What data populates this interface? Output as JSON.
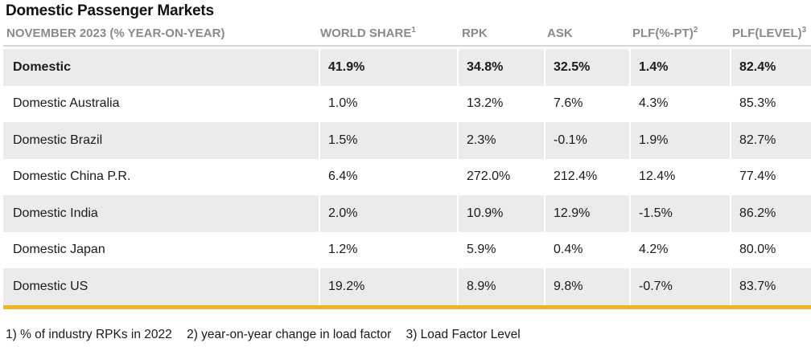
{
  "title": "Domestic Passenger Markets",
  "columns": [
    {
      "label": "NOVEMBER 2023 (% YEAR-ON-YEAR)",
      "sup": ""
    },
    {
      "label": "WORLD SHARE",
      "sup": "1"
    },
    {
      "label": "RPK",
      "sup": ""
    },
    {
      "label": "ASK",
      "sup": ""
    },
    {
      "label": "PLF(%-PT)",
      "sup": "2"
    },
    {
      "label": "PLF(LEVEL)",
      "sup": "3"
    }
  ],
  "rows": [
    {
      "cells": [
        "Domestic",
        "41.9%",
        "34.8%",
        "32.5%",
        "1.4%",
        "82.4%"
      ]
    },
    {
      "cells": [
        "Domestic Australia",
        "1.0%",
        "13.2%",
        "7.6%",
        "4.3%",
        "85.3%"
      ]
    },
    {
      "cells": [
        "Domestic Brazil",
        "1.5%",
        "2.3%",
        "-0.1%",
        "1.9%",
        "82.7%"
      ]
    },
    {
      "cells": [
        "Domestic China P.R.",
        "6.4%",
        "272.0%",
        "212.4%",
        "12.4%",
        "77.4%"
      ]
    },
    {
      "cells": [
        "Domestic India",
        "2.0%",
        "10.9%",
        "12.9%",
        "-1.5%",
        "86.2%"
      ]
    },
    {
      "cells": [
        "Domestic Japan",
        "1.2%",
        "5.9%",
        "0.4%",
        "4.2%",
        "80.0%"
      ]
    },
    {
      "cells": [
        "Domestic US",
        "19.2%",
        "8.9%",
        "9.8%",
        "-0.7%",
        "83.7%"
      ]
    }
  ],
  "footnotes": [
    "1) % of industry RPKs in 2022",
    "2) year-on-year change in load factor",
    "3) Load Factor Level"
  ],
  "colors": {
    "accent_rule": "#f0b323",
    "shaded_row": "#ebebeb",
    "header_text": "#8a8a8a"
  },
  "chart_data": {
    "type": "table",
    "title": "Domestic Passenger Markets",
    "columns": [
      "NOVEMBER 2023 (% YEAR-ON-YEAR)",
      "WORLD SHARE",
      "RPK",
      "ASK",
      "PLF(%-PT)",
      "PLF(LEVEL)"
    ],
    "rows": [
      [
        "Domestic",
        "41.9%",
        "34.8%",
        "32.5%",
        "1.4%",
        "82.4%"
      ],
      [
        "Domestic Australia",
        "1.0%",
        "13.2%",
        "7.6%",
        "4.3%",
        "85.3%"
      ],
      [
        "Domestic Brazil",
        "1.5%",
        "2.3%",
        "-0.1%",
        "1.9%",
        "82.7%"
      ],
      [
        "Domestic China P.R.",
        "6.4%",
        "272.0%",
        "212.4%",
        "12.4%",
        "77.4%"
      ],
      [
        "Domestic India",
        "2.0%",
        "10.9%",
        "12.9%",
        "-1.5%",
        "86.2%"
      ],
      [
        "Domestic Japan",
        "1.2%",
        "5.9%",
        "0.4%",
        "4.2%",
        "80.0%"
      ],
      [
        "Domestic US",
        "19.2%",
        "8.9%",
        "9.8%",
        "-0.7%",
        "83.7%"
      ]
    ]
  }
}
